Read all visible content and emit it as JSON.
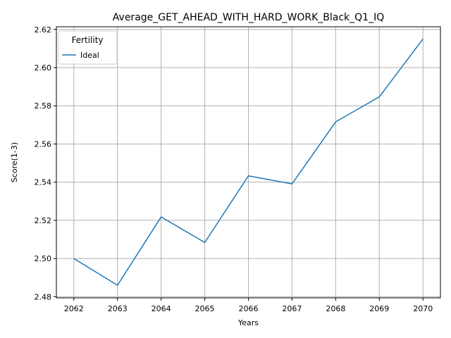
{
  "chart_data": {
    "type": "line",
    "title": "Average_GET_AHEAD_WITH_HARD_WORK_Black_Q1_IQ",
    "xlabel": "Years",
    "ylabel": "Score(1-3)",
    "x": [
      2062,
      2063,
      2064,
      2065,
      2066,
      2067,
      2068,
      2069,
      2070
    ],
    "xlim": [
      2061.6,
      2070.4
    ],
    "ylim": [
      2.4794,
      2.6214
    ],
    "yticks": [
      2.48,
      2.5,
      2.52,
      2.54,
      2.56,
      2.58,
      2.6,
      2.62
    ],
    "ytick_labels": [
      "2.48",
      "2.50",
      "2.52",
      "2.54",
      "2.56",
      "2.58",
      "2.60",
      "2.62"
    ],
    "xtick_labels": [
      "2062",
      "2063",
      "2064",
      "2065",
      "2066",
      "2067",
      "2068",
      "2069",
      "2070"
    ],
    "grid": true,
    "legend": {
      "title": "Fertility",
      "placement": "top-left"
    },
    "series": [
      {
        "name": "Ideal",
        "color": "#1f77b4",
        "values": [
          2.5,
          2.486,
          2.5218,
          2.5084,
          2.5433,
          2.5391,
          2.5716,
          2.5847,
          2.615
        ]
      }
    ]
  }
}
